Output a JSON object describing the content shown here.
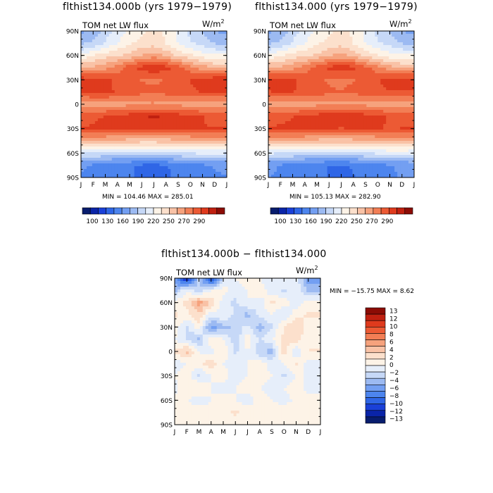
{
  "colors": {
    "palette": [
      "#081d6e",
      "#0a24a8",
      "#1a40d8",
      "#2f66e6",
      "#4d85ee",
      "#739ff2",
      "#9cbaf2",
      "#c6d8f7",
      "#e6eefa",
      "#fdf3e7",
      "#fce0cc",
      "#f9c2a6",
      "#f6a27d",
      "#f27e55",
      "#ec5a34",
      "#df3a1d",
      "#c02010",
      "#8c0c05"
    ],
    "diff_palette": [
      "#081d6e",
      "#0a24a8",
      "#1a40d8",
      "#2f66e6",
      "#4d85ee",
      "#739ff2",
      "#9cbaf2",
      "#c6d8f7",
      "#e6eefa",
      "#fdf3e7",
      "#fce0cc",
      "#f9c2a6",
      "#f6a27d",
      "#f27e55",
      "#ec5a34",
      "#df3a1d",
      "#c02010",
      "#8c0c05"
    ]
  },
  "panels": [
    {
      "title": "flthist134.000b (yrs 1979−1979)",
      "subtitle": "TOM net LW flux",
      "units_base": "W/m",
      "units_exp": "2",
      "stats": "MIN = 104.46 MAX = 285.01"
    },
    {
      "title": "flthist134.000 (yrs 1979−1979)",
      "subtitle": "TOM net LW flux",
      "units_base": "W/m",
      "units_exp": "2",
      "stats": "MIN = 105.13 MAX = 282.90"
    },
    {
      "title": "flthist134.000b − flthist134.000",
      "subtitle": "TOM net LW flux",
      "units_base": "W/m",
      "units_exp": "2",
      "stats": "MIN = −15.75 MAX =   8.62"
    }
  ],
  "chart_data": [
    {
      "type": "heatmap",
      "title": "flthist134.000b (yrs 1979−1979)",
      "subtitle": "TOM net LW flux",
      "units": "W/m2",
      "x_categories": [
        "J",
        "F",
        "M",
        "A",
        "M",
        "J",
        "J",
        "A",
        "S",
        "O",
        "N",
        "D",
        "J"
      ],
      "y_ticks": [
        "90N",
        "60N",
        "30N",
        "0",
        "30S",
        "60S",
        "90S"
      ],
      "y_values": [
        90,
        60,
        30,
        0,
        -30,
        -60,
        -90
      ],
      "min": 104.46,
      "max": 285.01,
      "colorbar_labels": [
        "100",
        "130",
        "160",
        "190",
        "220",
        "250",
        "270",
        "290"
      ],
      "latitudes": [
        -90,
        -75,
        -60,
        -45,
        -30,
        -15,
        0,
        15,
        30,
        45,
        60,
        75,
        90
      ],
      "values": [
        [
          150,
          148,
          142,
          140,
          140,
          138,
          137,
          138,
          141,
          145,
          148,
          150
        ],
        [
          152,
          149,
          144,
          141,
          140,
          138,
          137,
          139,
          142,
          146,
          149,
          151
        ],
        [
          185,
          183,
          182,
          180,
          180,
          179,
          178,
          180,
          183,
          185,
          186,
          186
        ],
        [
          230,
          228,
          226,
          225,
          223,
          222,
          222,
          223,
          225,
          227,
          229,
          230
        ],
        [
          262,
          263,
          265,
          266,
          265,
          263,
          262,
          263,
          264,
          263,
          262,
          262
        ],
        [
          258,
          260,
          262,
          265,
          268,
          272,
          274,
          272,
          268,
          265,
          262,
          259
        ],
        [
          232,
          233,
          234,
          235,
          236,
          237,
          238,
          236,
          236,
          235,
          233,
          232
        ],
        [
          262,
          264,
          263,
          261,
          257,
          253,
          252,
          254,
          257,
          260,
          262,
          262
        ],
        [
          270,
          268,
          264,
          260,
          254,
          250,
          249,
          251,
          256,
          262,
          267,
          270
        ],
        [
          228,
          230,
          236,
          244,
          258,
          266,
          270,
          266,
          256,
          244,
          234,
          228
        ],
        [
          196,
          206,
          212,
          216,
          220,
          228,
          234,
          226,
          214,
          208,
          200,
          196
        ],
        [
          170,
          175,
          185,
          195,
          205,
          210,
          212,
          205,
          195,
          185,
          180,
          172
        ],
        [
          158,
          165,
          178,
          188,
          196,
          204,
          210,
          205,
          192,
          180,
          170,
          162
        ]
      ]
    },
    {
      "type": "heatmap",
      "title": "flthist134.000 (yrs 1979−1979)",
      "subtitle": "TOM net LW flux",
      "units": "W/m2",
      "x_categories": [
        "J",
        "F",
        "M",
        "A",
        "M",
        "J",
        "J",
        "A",
        "S",
        "O",
        "N",
        "D",
        "J"
      ],
      "y_ticks": [
        "90N",
        "60N",
        "30N",
        "0",
        "30S",
        "60S",
        "90S"
      ],
      "y_values": [
        90,
        60,
        30,
        0,
        -30,
        -60,
        -90
      ],
      "min": 105.13,
      "max": 282.9,
      "colorbar_labels": [
        "100",
        "130",
        "160",
        "190",
        "220",
        "250",
        "270",
        "290"
      ],
      "latitudes": [
        -90,
        -75,
        -60,
        -45,
        -30,
        -15,
        0,
        15,
        30,
        45,
        60,
        75,
        90
      ],
      "values": [
        [
          151,
          149,
          143,
          141,
          141,
          139,
          138,
          139,
          142,
          146,
          149,
          151
        ],
        [
          153,
          150,
          145,
          142,
          141,
          139,
          138,
          140,
          143,
          147,
          150,
          152
        ],
        [
          186,
          184,
          183,
          181,
          181,
          180,
          179,
          181,
          184,
          186,
          187,
          187
        ],
        [
          231,
          229,
          227,
          226,
          224,
          223,
          223,
          224,
          226,
          228,
          230,
          231
        ],
        [
          262,
          263,
          264,
          265,
          264,
          262,
          261,
          262,
          263,
          262,
          261,
          262
        ],
        [
          257,
          259,
          261,
          264,
          267,
          271,
          273,
          271,
          267,
          264,
          261,
          258
        ],
        [
          232,
          233,
          234,
          235,
          236,
          237,
          238,
          236,
          236,
          235,
          233,
          232
        ],
        [
          261,
          263,
          262,
          260,
          256,
          252,
          251,
          253,
          256,
          259,
          261,
          261
        ],
        [
          269,
          267,
          263,
          259,
          253,
          249,
          248,
          250,
          255,
          261,
          266,
          269
        ],
        [
          228,
          230,
          236,
          244,
          257,
          265,
          269,
          265,
          255,
          243,
          233,
          228
        ],
        [
          196,
          205,
          211,
          215,
          219,
          227,
          233,
          225,
          213,
          207,
          199,
          196
        ],
        [
          170,
          175,
          185,
          195,
          205,
          210,
          212,
          205,
          195,
          185,
          180,
          172
        ],
        [
          158,
          165,
          178,
          188,
          196,
          204,
          210,
          205,
          192,
          180,
          170,
          162
        ]
      ]
    },
    {
      "type": "heatmap",
      "title": "flthist134.000b − flthist134.000",
      "subtitle": "TOM net LW flux",
      "units": "W/m2",
      "x_categories": [
        "J",
        "F",
        "M",
        "A",
        "M",
        "J",
        "J",
        "A",
        "S",
        "O",
        "N",
        "D",
        "J"
      ],
      "y_ticks": [
        "90N",
        "60N",
        "30N",
        "0",
        "30S",
        "60S",
        "90S"
      ],
      "y_values": [
        90,
        60,
        30,
        0,
        -30,
        -60,
        -90
      ],
      "min": -15.75,
      "max": 8.62,
      "colorbar_labels": [
        "13",
        "12",
        "10",
        "8",
        "6",
        "4",
        "2",
        "0",
        "−2",
        "−4",
        "−6",
        "−8",
        "−10",
        "−12",
        "−13"
      ],
      "latitudes": [
        -90,
        -75,
        -60,
        -45,
        -30,
        -15,
        0,
        15,
        30,
        45,
        60,
        75,
        90
      ],
      "values": [
        [
          0.5,
          1,
          0.5,
          0,
          0.5,
          1,
          0.5,
          0,
          0.5,
          1,
          0.5,
          0.5
        ],
        [
          1,
          1.5,
          1,
          0.5,
          1,
          2,
          1,
          0.5,
          1,
          1.5,
          1,
          1
        ],
        [
          0.5,
          0,
          -1,
          0,
          1,
          0,
          -1,
          1,
          0,
          -1,
          0.5,
          0.5
        ],
        [
          -0.5,
          1,
          2,
          0,
          -1,
          0,
          1,
          0,
          -1,
          0,
          1,
          -0.5
        ],
        [
          0,
          1,
          -2,
          0,
          1,
          -1,
          0,
          1,
          0,
          -2,
          0,
          0
        ],
        [
          -1,
          0,
          1,
          3,
          0,
          -1,
          0,
          1,
          -1,
          0,
          2,
          -1
        ],
        [
          2,
          4,
          0,
          -1,
          2,
          -2,
          0,
          -3,
          -4,
          3,
          -2,
          2
        ],
        [
          0,
          -2,
          -4,
          2,
          0,
          -3,
          1,
          -2,
          0,
          2,
          3,
          0
        ],
        [
          1,
          -2,
          1,
          -6,
          -4,
          -3,
          -1,
          -4,
          -2,
          2,
          3,
          1
        ],
        [
          2,
          1,
          3,
          -1,
          0,
          -2,
          -4,
          -1,
          0,
          -2,
          1,
          2
        ],
        [
          1,
          2,
          6,
          3,
          -1,
          -2,
          0,
          -1,
          2,
          1,
          -1,
          1
        ],
        [
          -4,
          0,
          -3,
          0,
          1,
          -1,
          0,
          1,
          -1,
          -2,
          0,
          -4
        ],
        [
          -6,
          -13,
          -3,
          -12,
          -2,
          0,
          1,
          0,
          -1,
          0,
          -1,
          -6
        ]
      ]
    }
  ]
}
